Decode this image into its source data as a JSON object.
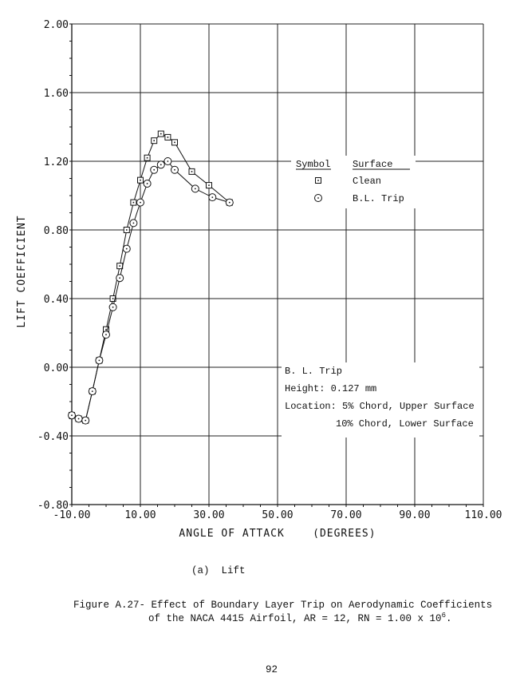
{
  "chart_data": {
    "type": "scatter",
    "title": "",
    "xlabel": "ANGLE OF ATTACK    (DEGREES)",
    "ylabel": "LIFT COEFFICIENT",
    "xlim": [
      -10,
      110
    ],
    "ylim": [
      -0.8,
      2.0
    ],
    "x_ticks": [
      -10,
      10,
      30,
      50,
      70,
      90,
      110
    ],
    "x_tick_labels": [
      "-10.00",
      "10.00",
      "30.00",
      "50.00",
      "70.00",
      "90.00",
      "110.00"
    ],
    "y_ticks": [
      -0.8,
      -0.4,
      0.0,
      0.4,
      0.8,
      1.2,
      1.6,
      2.0
    ],
    "y_tick_labels": [
      "-0.80",
      "-0.40",
      "0.00",
      "0.40",
      "0.80",
      "1.20",
      "1.60",
      "2.00"
    ],
    "grid": true,
    "legend": {
      "header_symbol": "Symbol",
      "header_surface": "Surface",
      "entries": [
        "Clean",
        "B.L. Trip"
      ],
      "location": "right, between 0.80 and 1.20"
    },
    "series": [
      {
        "name": "Clean",
        "marker": "square-dot",
        "points": [
          [
            -10,
            -0.28
          ],
          [
            -8,
            -0.3
          ],
          [
            -6,
            -0.31
          ],
          [
            -4,
            -0.14
          ],
          [
            -2,
            0.04
          ],
          [
            0,
            0.22
          ],
          [
            2,
            0.4
          ],
          [
            4,
            0.59
          ],
          [
            6,
            0.8
          ],
          [
            8,
            0.96
          ],
          [
            10,
            1.09
          ],
          [
            12,
            1.22
          ],
          [
            14,
            1.32
          ],
          [
            16,
            1.36
          ],
          [
            18,
            1.34
          ],
          [
            20,
            1.31
          ],
          [
            25,
            1.14
          ],
          [
            30,
            1.06
          ],
          [
            36,
            0.96
          ]
        ]
      },
      {
        "name": "B.L. Trip",
        "marker": "circle-dot",
        "points": [
          [
            -10,
            -0.28
          ],
          [
            -8,
            -0.3
          ],
          [
            -6,
            -0.31
          ],
          [
            -4,
            -0.14
          ],
          [
            -2,
            0.04
          ],
          [
            0,
            0.19
          ],
          [
            2,
            0.35
          ],
          [
            4,
            0.52
          ],
          [
            6,
            0.69
          ],
          [
            8,
            0.84
          ],
          [
            10,
            0.96
          ],
          [
            12,
            1.07
          ],
          [
            14,
            1.15
          ],
          [
            16,
            1.18
          ],
          [
            18,
            1.2
          ],
          [
            20,
            1.15
          ],
          [
            26,
            1.04
          ],
          [
            31,
            0.99
          ],
          [
            36,
            0.96
          ]
        ]
      }
    ],
    "annotation": {
      "title": "B. L. Trip",
      "height": "Height: 0.127 mm",
      "location1": "Location: 5% Chord, Upper Surface",
      "location2": "10% Chord, Lower Surface"
    }
  },
  "captions": {
    "subcaption": "(a)  Lift",
    "figure_line1": "Figure A.27- Effect of Boundary Layer Trip on Aerodynamic Coefficients",
    "figure_line2_text": "of the NACA 4415 Airfoil, AR = 12, RN = 1.00 x 10",
    "figure_line2_exp": "6",
    "figure_line2_end": ".",
    "page_number": "92"
  }
}
